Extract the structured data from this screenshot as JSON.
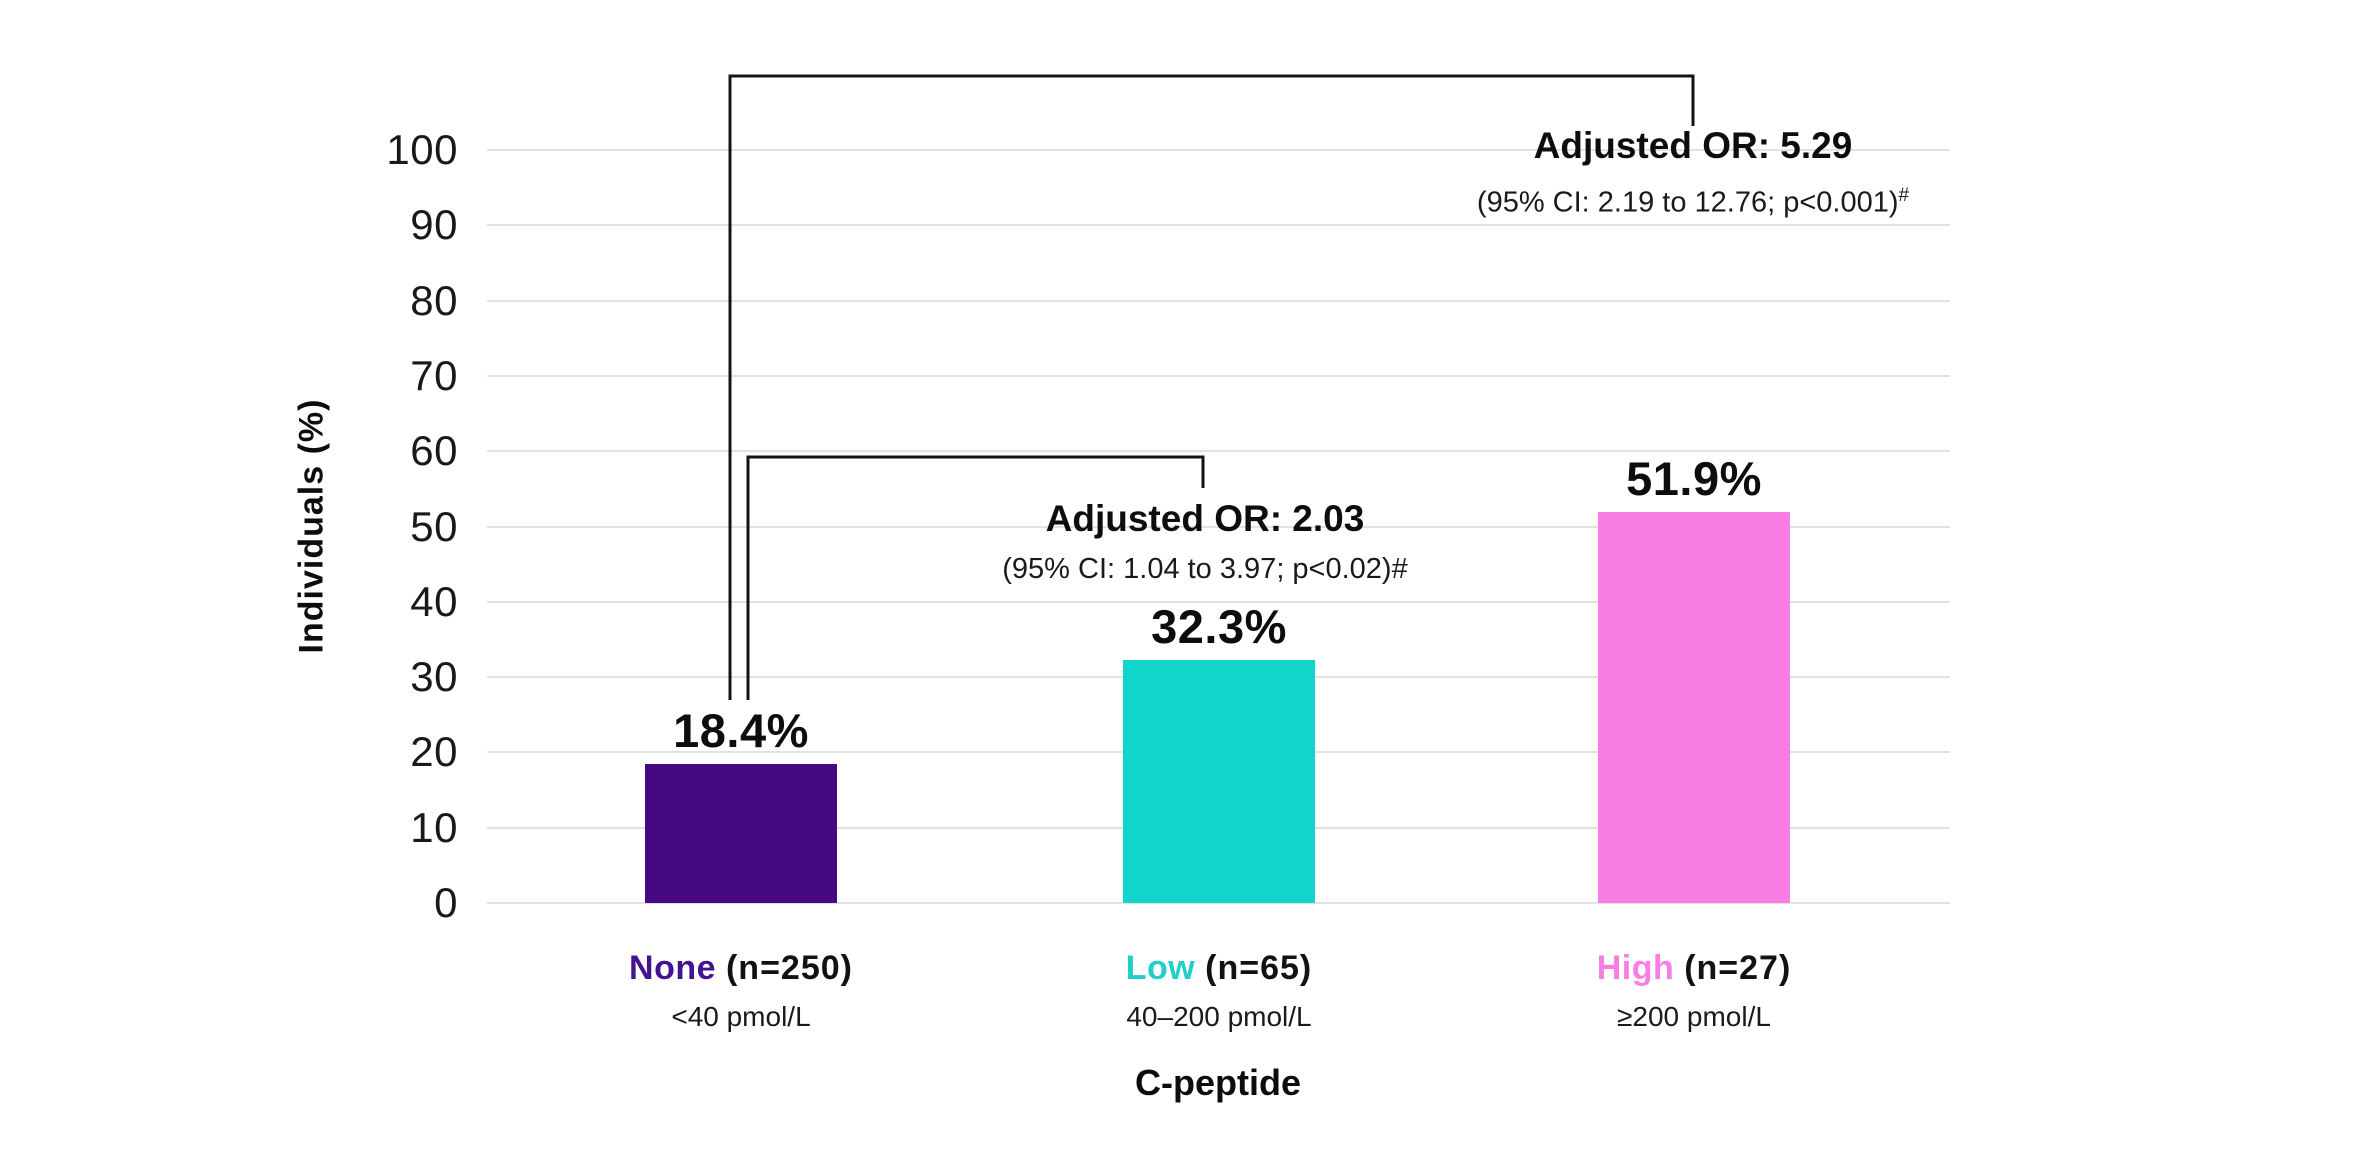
{
  "chart_data": {
    "type": "bar",
    "title": "",
    "xlabel": "C-peptide",
    "ylabel": "Individuals (%)",
    "ylim": [
      0,
      100
    ],
    "yticks": [
      0,
      10,
      20,
      30,
      40,
      50,
      60,
      70,
      80,
      90,
      100
    ],
    "grid": true,
    "legend": false,
    "categories": [
      "None",
      "Low",
      "High"
    ],
    "category_n_labels": [
      "(n=250)",
      "(n=65)",
      "(n=27)"
    ],
    "category_ranges": [
      "<40 pmol/L",
      "40–200 pmol/L",
      "≥200 pmol/L"
    ],
    "values": [
      18.4,
      32.3,
      51.9
    ],
    "value_labels": [
      "18.4%",
      "32.3%",
      "51.9%"
    ],
    "bar_colors": [
      "#470982",
      "#0fd5cb",
      "#f87de4"
    ],
    "label_colors": [
      "#441390",
      "#1ed0c8",
      "#f87de4"
    ],
    "gridline_color": "#e2e2e2",
    "bracket_color": "#141414",
    "annotations": [
      {
        "title": "Adjusted OR: 5.29",
        "ci": "(95% CI: 2.19 to 12.76; p<0.001)",
        "hash": "#"
      },
      {
        "title": "Adjusted OR: 2.03",
        "ci": "(95% CI: 1.04 to 3.97; p<0.02)",
        "hash": "#"
      }
    ]
  }
}
